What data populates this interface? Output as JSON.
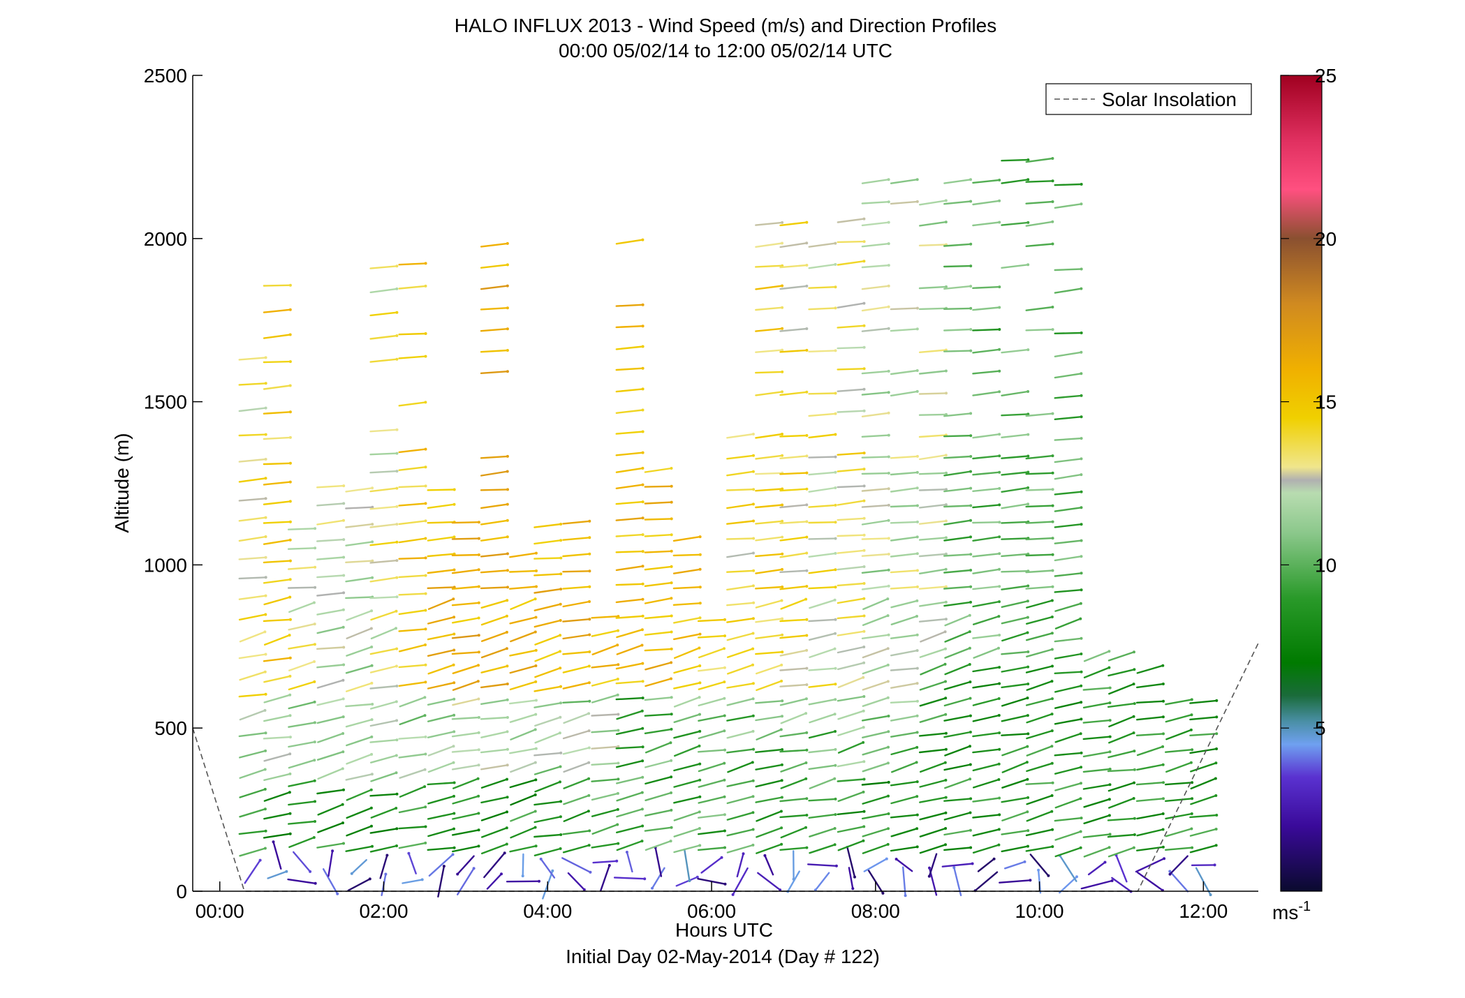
{
  "chart_data": {
    "type": "scatter",
    "title": "HALO INFLUX 2013 - Wind Speed (m/s) and Direction Profiles",
    "subtitle": "00:00 05/02/14 to 12:00 05/02/14  UTC",
    "xlabel": "Hours UTC",
    "xlabel_note": "Initial Day 02-May-2014 (Day # 122)",
    "ylabel": "Altitude (m)",
    "x_ticks": [
      "00:00",
      "02:00",
      "04:00",
      "06:00",
      "08:00",
      "10:00",
      "12:00"
    ],
    "x_tick_values": [
      0,
      2,
      4,
      6,
      8,
      10,
      12
    ],
    "xlim": [
      -0.33,
      12.67
    ],
    "y_ticks": [
      "0",
      "500",
      "1000",
      "1500",
      "2000",
      "2500"
    ],
    "y_tick_values": [
      0,
      500,
      1000,
      1500,
      2000,
      2500
    ],
    "ylim": [
      0,
      2500
    ],
    "legend": {
      "placement": "top-right",
      "entries": [
        "Solar Insolation"
      ]
    },
    "colorbar": {
      "unit": "ms-1",
      "unit_main": "ms",
      "unit_sup": "-1",
      "range": [
        0,
        25
      ],
      "ticks": [
        "5",
        "10",
        "15",
        "20",
        "25"
      ],
      "tick_values": [
        5,
        10,
        15,
        20,
        25
      ],
      "stops": [
        {
          "v": 0,
          "color": "#0a0a2e"
        },
        {
          "v": 2,
          "color": "#3a0a9a"
        },
        {
          "v": 3.5,
          "color": "#5a32d0"
        },
        {
          "v": 4.5,
          "color": "#6fa0f0"
        },
        {
          "v": 5.2,
          "color": "#4a8fa6"
        },
        {
          "v": 6,
          "color": "#1a6b3a"
        },
        {
          "v": 7,
          "color": "#007a00"
        },
        {
          "v": 9,
          "color": "#2a9a2a"
        },
        {
          "v": 11,
          "color": "#8cc88c"
        },
        {
          "v": 12.2,
          "color": "#b8dcb0"
        },
        {
          "v": 12.6,
          "color": "#b0b0b0"
        },
        {
          "v": 13,
          "color": "#f0e68c"
        },
        {
          "v": 14.5,
          "color": "#f0d000"
        },
        {
          "v": 16,
          "color": "#f0b000"
        },
        {
          "v": 18,
          "color": "#d08a20"
        },
        {
          "v": 20,
          "color": "#8a5030"
        },
        {
          "v": 21.5,
          "color": "#ff5080"
        },
        {
          "v": 23,
          "color": "#e03060"
        },
        {
          "v": 25,
          "color": "#a00020"
        }
      ]
    },
    "solar_insolation": {
      "name": "Solar Insolation",
      "color": "#555555",
      "points": [
        [
          -0.33,
          500
        ],
        [
          0.3,
          0
        ],
        [
          11.2,
          0
        ],
        [
          12.67,
          760
        ]
      ]
    },
    "profiles": [
      {
        "t": 0.4,
        "alt_min": 60,
        "alt_max": 1700,
        "base_speed": 13.5,
        "step": 60
      },
      {
        "t": 0.7,
        "alt_min": 50,
        "alt_max": 1870,
        "base_speed": 14.5,
        "step": 60
      },
      {
        "t": 1.0,
        "alt_min": 30,
        "alt_max": 1130,
        "base_speed": 13,
        "step": 60
      },
      {
        "t": 1.35,
        "alt_min": 30,
        "alt_max": 1290,
        "base_speed": 12,
        "step": 55
      },
      {
        "t": 1.7,
        "alt_min": 20,
        "alt_max": 1250,
        "base_speed": 12,
        "step": 55
      },
      {
        "t": 2.0,
        "alt_min": 20,
        "alt_max": 1960,
        "base_speed": 13,
        "step": 55
      },
      {
        "t": 2.35,
        "alt_min": 30,
        "alt_max": 1960,
        "base_speed": 15,
        "step": 55
      },
      {
        "t": 2.7,
        "alt_min": 30,
        "alt_max": 1250,
        "base_speed": 15.5,
        "step": 50
      },
      {
        "t": 3.0,
        "alt_min": 30,
        "alt_max": 1160,
        "base_speed": 16,
        "step": 50
      },
      {
        "t": 3.35,
        "alt_min": 30,
        "alt_max": 2050,
        "base_speed": 16,
        "step": 50
      },
      {
        "t": 3.7,
        "alt_min": 30,
        "alt_max": 1030,
        "base_speed": 15.5,
        "step": 50
      },
      {
        "t": 4.0,
        "alt_min": 20,
        "alt_max": 1160,
        "base_speed": 15.5,
        "step": 50
      },
      {
        "t": 4.35,
        "alt_min": 30,
        "alt_max": 1160,
        "base_speed": 16,
        "step": 50
      },
      {
        "t": 4.7,
        "alt_min": 40,
        "alt_max": 870,
        "base_speed": 15.5,
        "step": 50
      },
      {
        "t": 5.0,
        "alt_min": 40,
        "alt_max": 2040,
        "base_speed": 15.5,
        "step": 50
      },
      {
        "t": 5.35,
        "alt_min": 40,
        "alt_max": 1330,
        "base_speed": 15.5,
        "step": 50
      },
      {
        "t": 5.7,
        "alt_min": 30,
        "alt_max": 1100,
        "base_speed": 15,
        "step": 50
      },
      {
        "t": 6.0,
        "alt_min": 30,
        "alt_max": 860,
        "base_speed": 14.5,
        "step": 50
      },
      {
        "t": 6.35,
        "alt_min": 30,
        "alt_max": 1400,
        "base_speed": 14,
        "step": 50
      },
      {
        "t": 6.7,
        "alt_min": 30,
        "alt_max": 2050,
        "base_speed": 14,
        "step": 50
      },
      {
        "t": 7.0,
        "alt_min": 30,
        "alt_max": 2050,
        "base_speed": 14,
        "step": 50
      },
      {
        "t": 7.35,
        "alt_min": 30,
        "alt_max": 2000,
        "base_speed": 13.5,
        "step": 50
      },
      {
        "t": 7.7,
        "alt_min": 40,
        "alt_max": 2060,
        "base_speed": 13.5,
        "step": 50
      },
      {
        "t": 8.0,
        "alt_min": 30,
        "alt_max": 2180,
        "base_speed": 12,
        "step": 50
      },
      {
        "t": 8.35,
        "alt_min": 30,
        "alt_max": 2180,
        "base_speed": 12,
        "step": 50
      },
      {
        "t": 8.7,
        "alt_min": 30,
        "alt_max": 2140,
        "base_speed": 12,
        "step": 50
      },
      {
        "t": 9.0,
        "alt_min": 30,
        "alt_max": 2180,
        "base_speed": 10,
        "step": 50
      },
      {
        "t": 9.35,
        "alt_min": 30,
        "alt_max": 2180,
        "base_speed": 10,
        "step": 50
      },
      {
        "t": 9.7,
        "alt_min": 30,
        "alt_max": 2270,
        "base_speed": 10,
        "step": 50
      },
      {
        "t": 10.0,
        "alt_min": 30,
        "alt_max": 2320,
        "base_speed": 10,
        "step": 50
      },
      {
        "t": 10.35,
        "alt_min": 20,
        "alt_max": 2220,
        "base_speed": 10,
        "step": 50
      },
      {
        "t": 10.7,
        "alt_min": 20,
        "alt_max": 740,
        "base_speed": 9.5,
        "step": 50
      },
      {
        "t": 11.0,
        "alt_min": 20,
        "alt_max": 720,
        "base_speed": 9.5,
        "step": 50
      },
      {
        "t": 11.35,
        "alt_min": 30,
        "alt_max": 690,
        "base_speed": 9.5,
        "step": 50
      },
      {
        "t": 11.7,
        "alt_min": 30,
        "alt_max": 620,
        "base_speed": 9.5,
        "step": 50
      },
      {
        "t": 12.0,
        "alt_min": 30,
        "alt_max": 600,
        "base_speed": 9.5,
        "step": 50
      }
    ]
  }
}
